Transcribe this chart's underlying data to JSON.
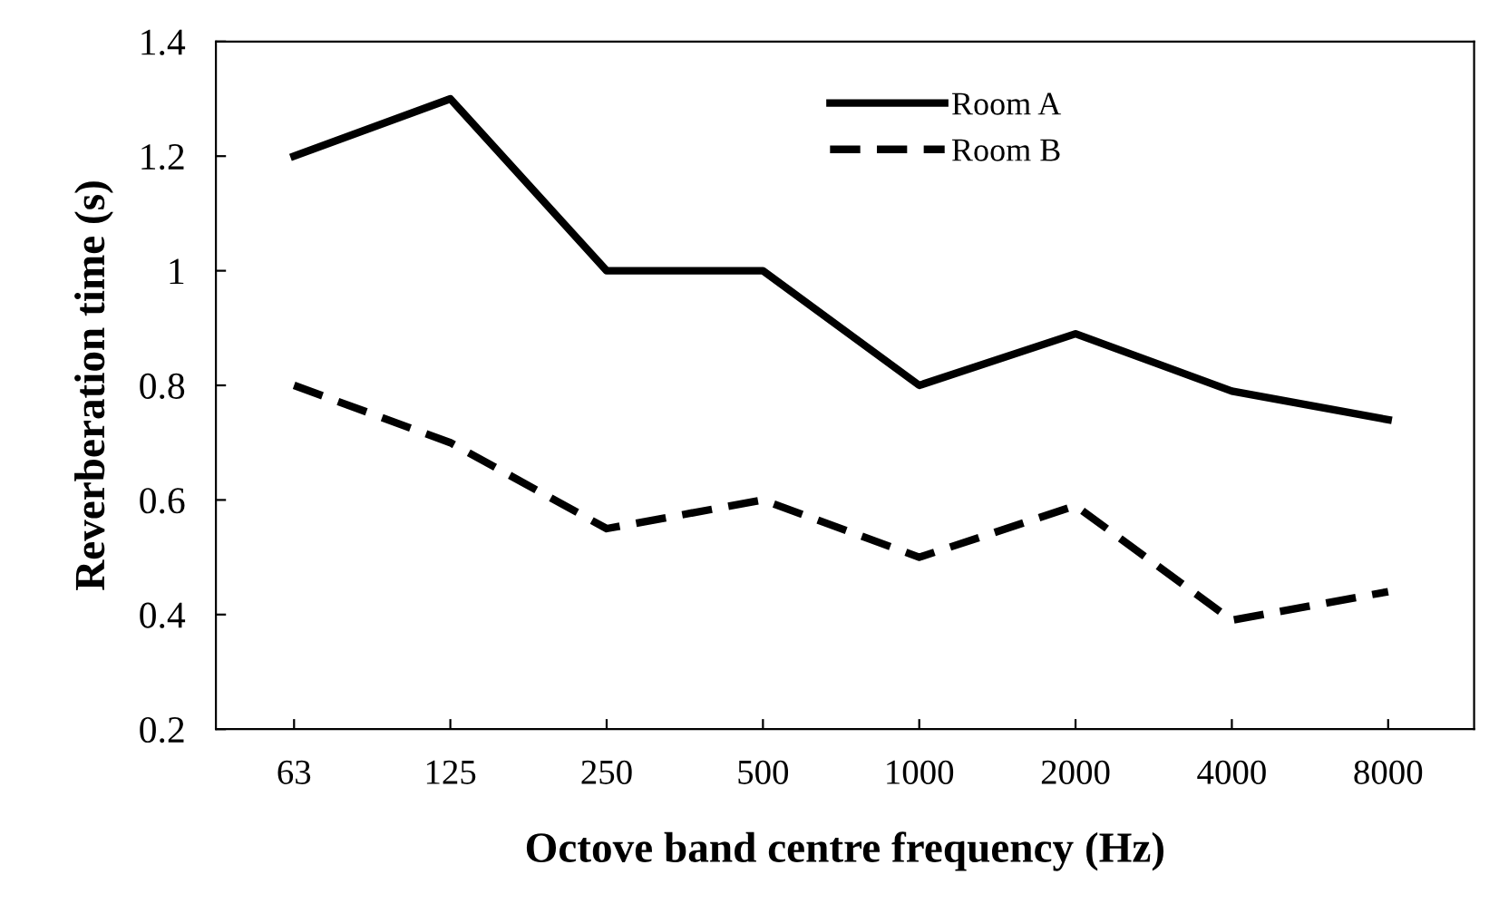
{
  "chart_data": {
    "type": "line",
    "xlabel": "Octove band centre frequency (Hz)",
    "ylabel": "Reverberation time (s)",
    "categories": [
      "63",
      "125",
      "250",
      "500",
      "1000",
      "2000",
      "4000",
      "8000"
    ],
    "series": [
      {
        "name": "Room A",
        "color": "#000000",
        "line_style": "solid",
        "values": [
          1.2,
          1.3,
          1.0,
          1.0,
          0.8,
          0.89,
          0.79,
          0.74
        ]
      },
      {
        "name": "Room B",
        "color": "#000000",
        "line_style": "dashed",
        "values": [
          0.8,
          0.7,
          0.55,
          0.6,
          0.5,
          0.59,
          0.39,
          0.44
        ]
      }
    ],
    "ylim": [
      0.2,
      1.4
    ],
    "yticks": [
      0.2,
      0.4,
      0.6,
      0.8,
      1,
      1.2,
      1.4
    ],
    "grid": false,
    "legend": "top",
    "marker": "none"
  }
}
